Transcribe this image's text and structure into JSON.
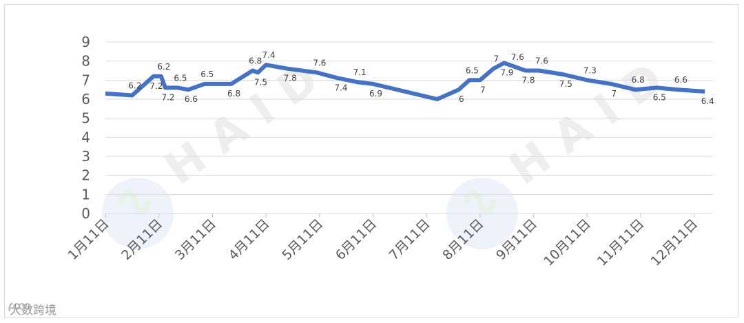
{
  "chart_data": {
    "type": "line",
    "title": "",
    "xlabel": "",
    "ylabel": "",
    "ylim": [
      0,
      9
    ],
    "yticks": [
      0,
      1,
      2,
      3,
      4,
      5,
      6,
      7,
      8,
      9
    ],
    "xtick_labels": [
      "1月11日",
      "2月11日",
      "3月11日",
      "4月11日",
      "5月11日",
      "6月11日",
      "7月11日",
      "8月11日",
      "9月11日",
      "10月11日",
      "11月11日",
      "12月11日"
    ],
    "grid": "horizontal",
    "legend": "none",
    "series": [
      {
        "color": "#4472c4",
        "points": [
          {
            "x": 0.0,
            "y": 6.3
          },
          {
            "x": 0.5,
            "y": 6.2,
            "label": "6.2"
          },
          {
            "x": 0.9,
            "y": 7.2,
            "label": "7.2"
          },
          {
            "x": 1.04,
            "y": 7.2,
            "label": "6.2"
          },
          {
            "x": 1.12,
            "y": 6.6,
            "label": "7.2"
          },
          {
            "x": 1.35,
            "y": 6.6,
            "label": "6.5"
          },
          {
            "x": 1.55,
            "y": 6.5,
            "label": "6.6"
          },
          {
            "x": 1.85,
            "y": 6.8,
            "label": "6.5"
          },
          {
            "x": 2.35,
            "y": 6.8,
            "label": "6.8"
          },
          {
            "x": 2.75,
            "y": 7.5,
            "label": "6.8"
          },
          {
            "x": 2.85,
            "y": 7.4,
            "label": "7.5"
          },
          {
            "x": 3.0,
            "y": 7.8,
            "label": "7.4"
          },
          {
            "x": 3.4,
            "y": 7.6,
            "label": "7.8"
          },
          {
            "x": 3.95,
            "y": 7.4,
            "label": "7.6"
          },
          {
            "x": 4.35,
            "y": 7.1,
            "label": "7.4"
          },
          {
            "x": 4.7,
            "y": 6.9,
            "label": "7.1"
          },
          {
            "x": 5.0,
            "y": 6.8,
            "label": "6.9"
          },
          {
            "x": 6.2,
            "y": 6.0
          },
          {
            "x": 6.6,
            "y": 6.5,
            "label": "6"
          },
          {
            "x": 6.8,
            "y": 7.0,
            "label": "6.5"
          },
          {
            "x": 7.0,
            "y": 7.0,
            "label": "7"
          },
          {
            "x": 7.25,
            "y": 7.6,
            "label": "7"
          },
          {
            "x": 7.45,
            "y": 7.9,
            "label": "7.9"
          },
          {
            "x": 7.65,
            "y": 7.7,
            "label": "7.6"
          },
          {
            "x": 7.85,
            "y": 7.5,
            "label": "7.8"
          },
          {
            "x": 8.1,
            "y": 7.5,
            "label": "7.6"
          },
          {
            "x": 8.55,
            "y": 7.3,
            "label": "7.5"
          },
          {
            "x": 9.0,
            "y": 7.0,
            "label": "7.3"
          },
          {
            "x": 9.45,
            "y": 6.8,
            "label": "7"
          },
          {
            "x": 9.9,
            "y": 6.5,
            "label": "6.8"
          },
          {
            "x": 10.3,
            "y": 6.6,
            "label": "6.5"
          },
          {
            "x": 10.7,
            "y": 6.5,
            "label": "6.6"
          },
          {
            "x": 11.2,
            "y": 6.4,
            "label": "6.4"
          }
        ]
      }
    ]
  },
  "watermark": {
    "text": "HAID"
  },
  "logo": {
    "text": "大数跨境",
    "icon": "bubble-logo-icon"
  }
}
